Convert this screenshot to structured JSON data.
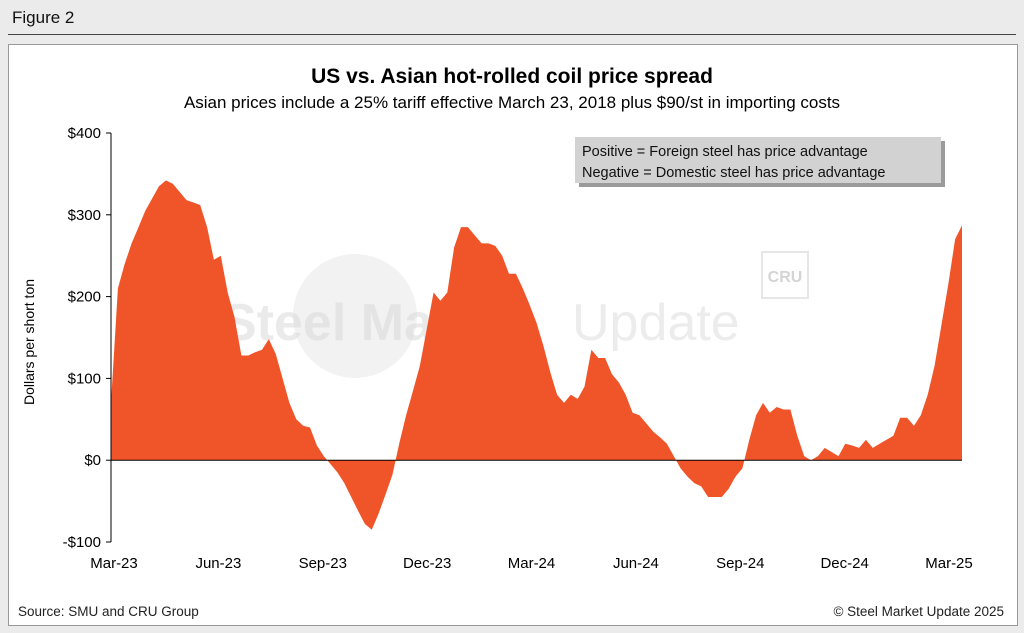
{
  "figure_label": "Figure 2",
  "watermark": {
    "brand_bold": "Steel Market",
    "brand_light": "Update",
    "logo": "CRU"
  },
  "chart_data": {
    "type": "area",
    "title": "US vs. Asian hot-rolled coil price spread",
    "subtitle": "Asian prices include a 25% tariff effective March 23, 2018 plus $90/st in importing costs",
    "ylabel": "Dollars per short ton",
    "xlabel": "",
    "ylim": [
      -100,
      400
    ],
    "yticks": [
      -100,
      0,
      100,
      200,
      300,
      400
    ],
    "ytick_labels": [
      "-$100",
      "$0",
      "$100",
      "$200",
      "$300",
      "$400"
    ],
    "x_tick_labels": [
      "Mar-23",
      "Jun-23",
      "Sep-23",
      "Dec-23",
      "Mar-24",
      "Jun-24",
      "Sep-24",
      "Dec-24",
      "Mar-25"
    ],
    "color": "#f0552a",
    "series": [
      {
        "values": [
          70,
          210,
          240,
          265,
          285,
          305,
          320,
          335,
          342,
          338,
          328,
          318,
          315,
          312,
          285,
          245,
          250,
          205,
          175,
          128,
          128,
          132,
          135,
          148,
          130,
          100,
          70,
          50,
          42,
          40,
          18,
          5,
          -5,
          -15,
          -28,
          -45,
          -62,
          -78,
          -85,
          -65,
          -42,
          -18,
          20,
          55,
          85,
          115,
          160,
          205,
          195,
          205,
          260,
          285,
          285,
          275,
          265,
          265,
          262,
          250,
          228,
          228,
          210,
          190,
          168,
          140,
          108,
          80,
          70,
          80,
          75,
          90,
          135,
          125,
          125,
          105,
          95,
          80,
          58,
          55,
          45,
          35,
          28,
          20,
          5,
          -10,
          -20,
          -28,
          -32,
          -45,
          -45,
          -45,
          -35,
          -20,
          -10,
          25,
          55,
          70,
          58,
          65,
          62,
          62,
          30,
          5,
          0,
          5,
          15,
          10,
          5,
          20,
          18,
          15,
          25,
          15,
          20,
          25,
          30,
          52,
          52,
          42,
          55,
          80,
          115,
          165,
          215,
          270,
          287
        ]
      }
    ],
    "legend": {
      "position": "top-right",
      "lines": [
        "Positive = Foreign steel has price advantage",
        "Negative = Domestic steel has price advantage"
      ]
    },
    "grid": false
  },
  "footer": {
    "source": "Source: SMU and CRU Group",
    "copyright": "© Steel Market Update 2025"
  }
}
